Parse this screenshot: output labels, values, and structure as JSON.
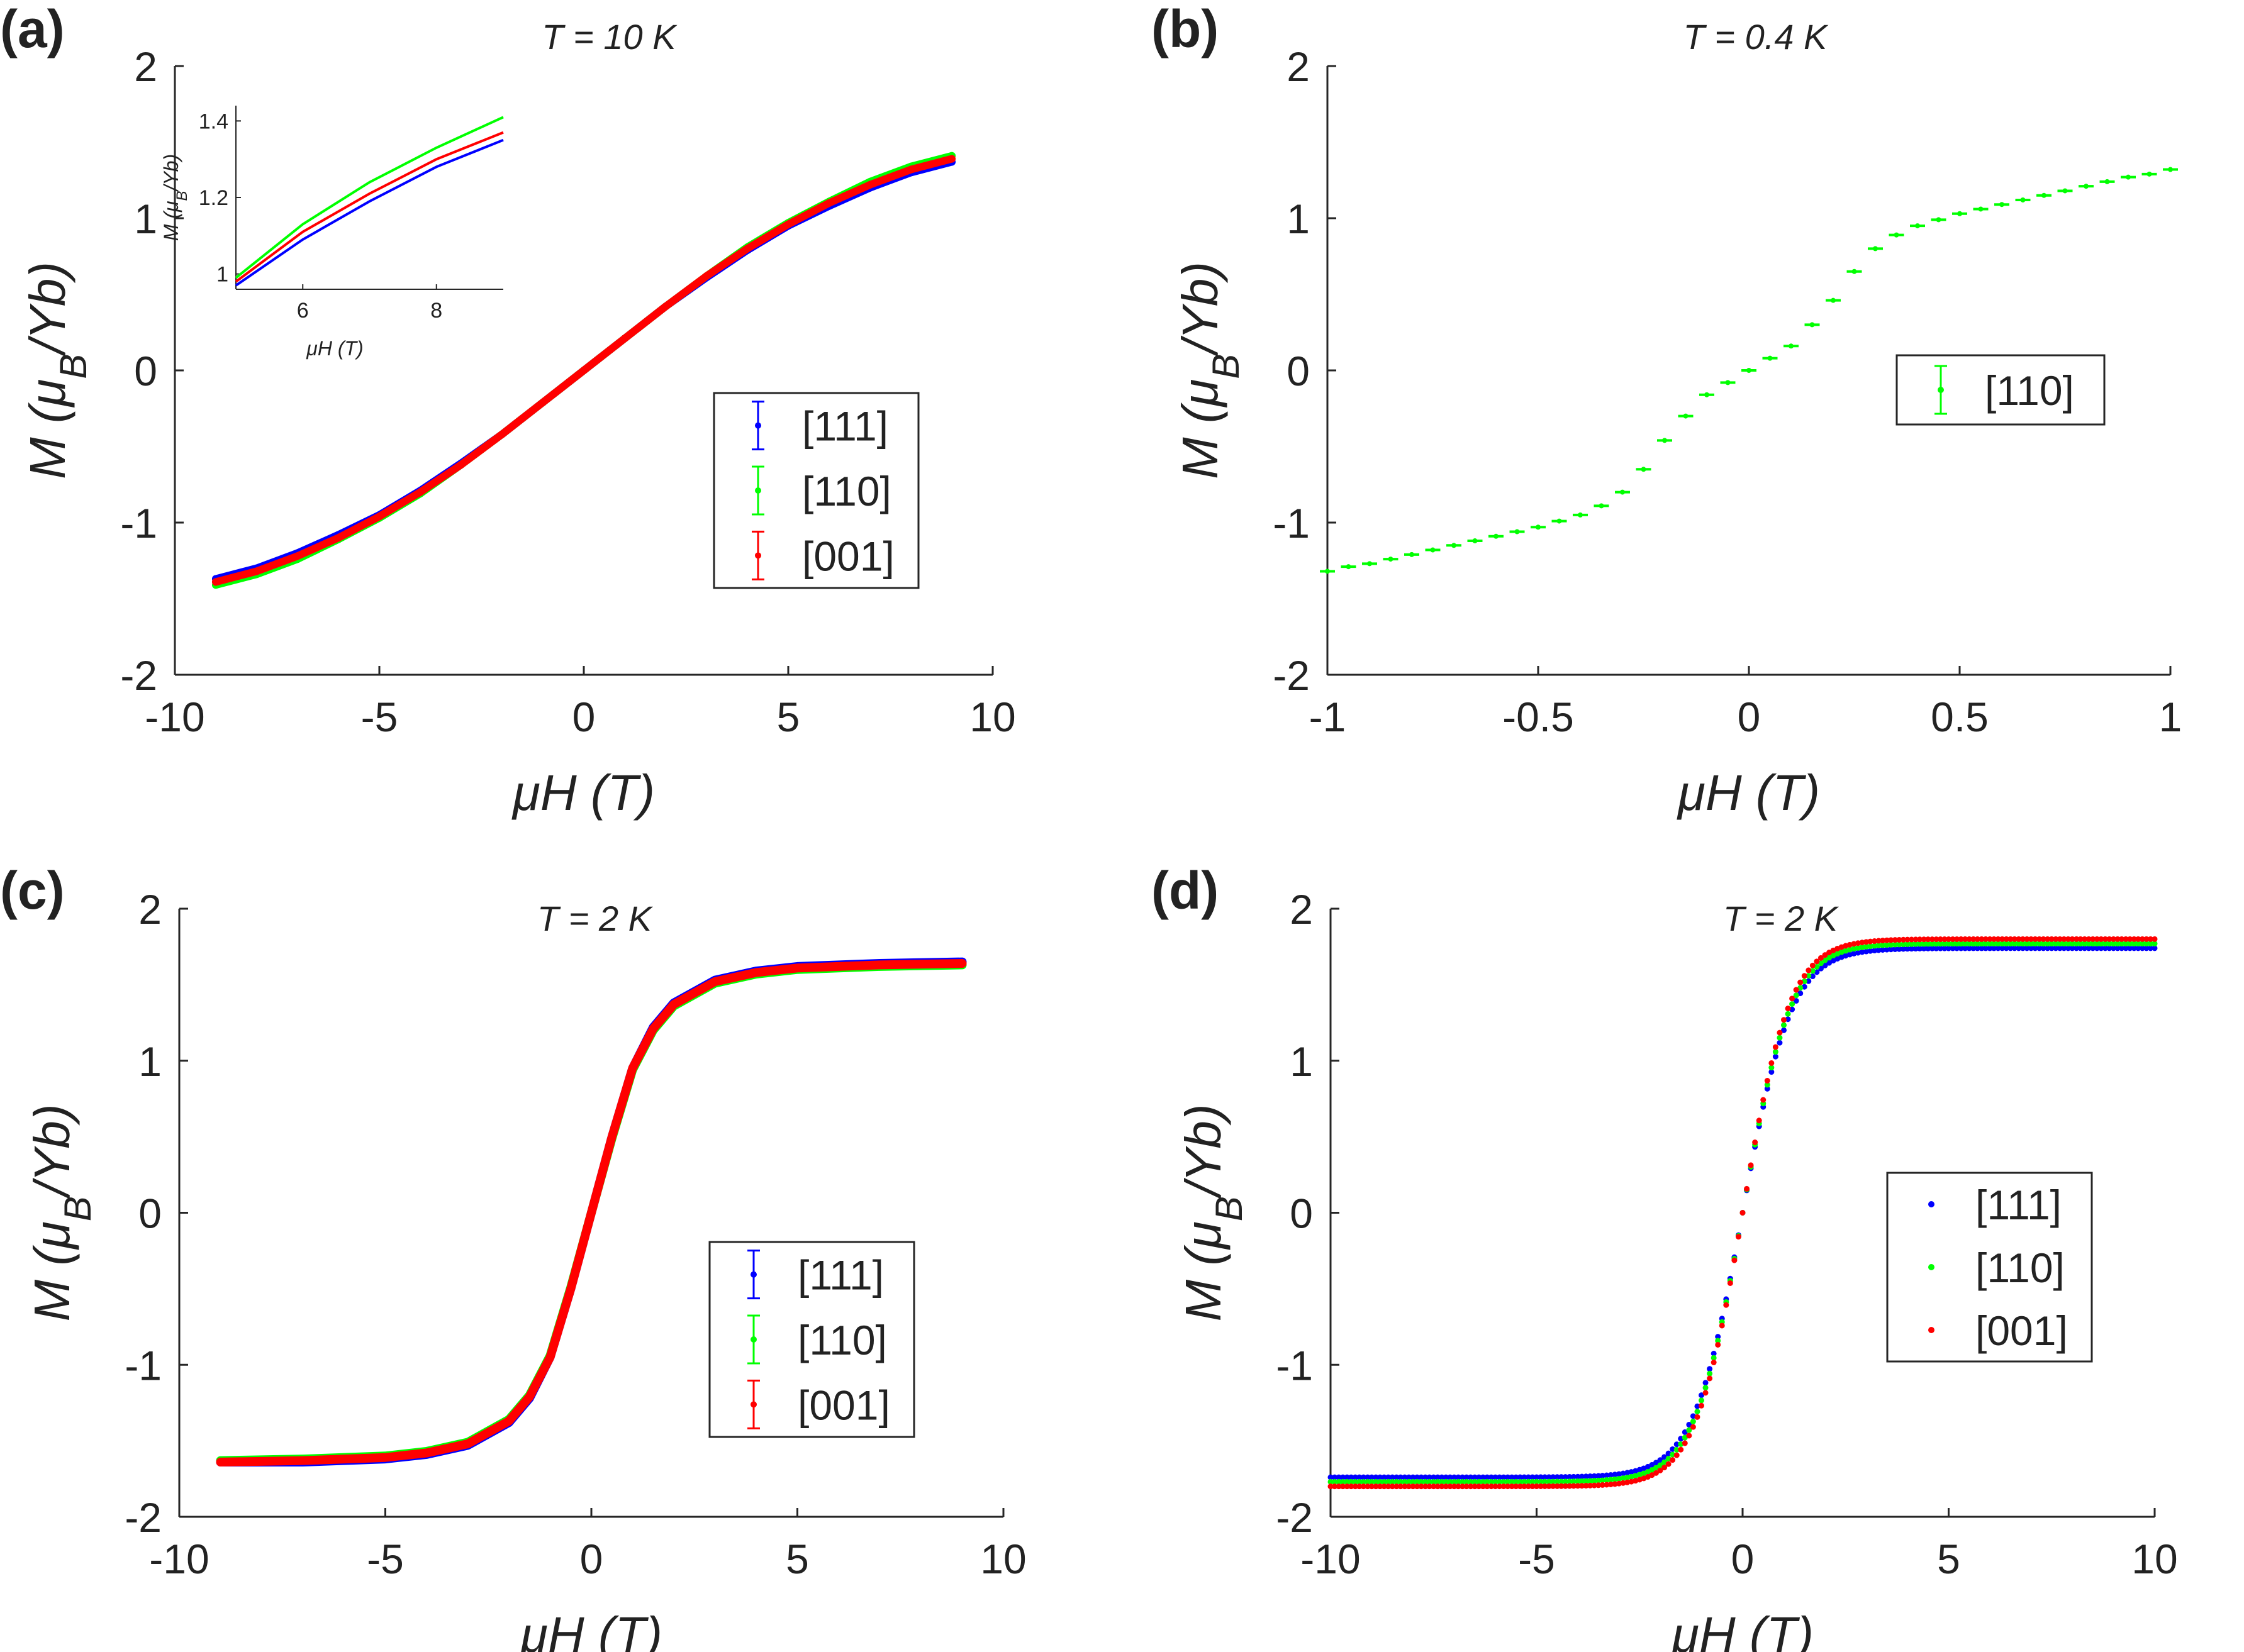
{
  "figure": {
    "ylabel": "M (μB/Yb)",
    "xlabel": "μH (T)"
  },
  "colors": {
    "[111]": "#0000ff",
    "[110]": "#00ff00",
    "[001]": "#ff0000"
  },
  "chart_data": [
    {
      "id": "a",
      "panel_label": "(a)",
      "type": "scatter",
      "title": "T = 10 K",
      "xlabel": "μH (T)",
      "ylabel": "M (μB/Yb)",
      "xlim": [
        -10,
        10
      ],
      "ylim": [
        -2,
        2
      ],
      "xticks": [
        -10,
        -5,
        0,
        5,
        10
      ],
      "yticks": [
        -2,
        -1,
        0,
        1,
        2
      ],
      "xtick_labels": [
        "-10",
        "-5",
        "0",
        "5",
        "10"
      ],
      "ytick_labels": [
        "-2",
        "-1",
        "0",
        "1",
        "2"
      ],
      "legend_position": "center-right",
      "legend_style": "errorbar",
      "series": [
        {
          "name": "[111]",
          "x": [
            -9,
            -8,
            -7,
            -6,
            -5,
            -4,
            -3,
            -2,
            -1,
            0,
            1,
            2,
            3,
            4,
            5,
            6,
            7,
            8,
            9
          ],
          "y": [
            -1.37,
            -1.3,
            -1.2,
            -1.08,
            -0.95,
            -0.79,
            -0.61,
            -0.42,
            -0.21,
            0,
            0.21,
            0.42,
            0.61,
            0.79,
            0.95,
            1.08,
            1.2,
            1.3,
            1.37
          ]
        },
        {
          "name": "[110]",
          "x": [
            -9,
            -8,
            -7,
            -6,
            -5,
            -4,
            -3,
            -2,
            -1,
            0,
            1,
            2,
            3,
            4,
            5,
            6,
            7,
            8,
            9
          ],
          "y": [
            -1.41,
            -1.34,
            -1.24,
            -1.11,
            -0.97,
            -0.81,
            -0.62,
            -0.42,
            -0.21,
            0,
            0.21,
            0.42,
            0.62,
            0.81,
            0.97,
            1.11,
            1.24,
            1.34,
            1.41
          ]
        },
        {
          "name": "[001]",
          "x": [
            -9,
            -8,
            -7,
            -6,
            -5,
            -4,
            -3,
            -2,
            -1,
            0,
            1,
            2,
            3,
            4,
            5,
            6,
            7,
            8,
            9
          ],
          "y": [
            -1.39,
            -1.32,
            -1.22,
            -1.1,
            -0.96,
            -0.8,
            -0.62,
            -0.42,
            -0.21,
            0,
            0.21,
            0.42,
            0.62,
            0.8,
            0.96,
            1.1,
            1.22,
            1.32,
            1.39
          ]
        }
      ],
      "inset": {
        "type": "line",
        "xlabel": "μH (T)",
        "ylabel": "M (μB/Yb)",
        "xlim": [
          5,
          9
        ],
        "ylim": [
          0.96,
          1.44
        ],
        "xticks": [
          6,
          8
        ],
        "yticks": [
          1,
          1.2,
          1.4
        ],
        "xtick_labels": [
          "6",
          "8"
        ],
        "ytick_labels": [
          "1",
          "1.2",
          "1.4"
        ],
        "series": [
          {
            "name": "[111]",
            "x": [
              5,
              6,
              7,
              8,
              9
            ],
            "y": [
              0.97,
              1.09,
              1.19,
              1.28,
              1.35
            ]
          },
          {
            "name": "[001]",
            "x": [
              5,
              6,
              7,
              8,
              9
            ],
            "y": [
              0.98,
              1.11,
              1.21,
              1.3,
              1.37
            ]
          },
          {
            "name": "[110]",
            "x": [
              5,
              6,
              7,
              8,
              9
            ],
            "y": [
              0.99,
              1.13,
              1.24,
              1.33,
              1.41
            ]
          }
        ]
      }
    },
    {
      "id": "b",
      "panel_label": "(b)",
      "type": "scatter",
      "title": "T = 0.4 K",
      "xlabel": "μH (T)",
      "ylabel": "M (μB/Yb)",
      "xlim": [
        -1,
        1
      ],
      "ylim": [
        -2,
        2
      ],
      "xticks": [
        -1,
        -0.5,
        0,
        0.5,
        1
      ],
      "yticks": [
        -2,
        -1,
        0,
        1,
        2
      ],
      "xtick_labels": [
        "-1",
        "-0.5",
        "0",
        "0.5",
        "1"
      ],
      "ytick_labels": [
        "-2",
        "-1",
        "0",
        "1",
        "2"
      ],
      "legend_position": "center-right",
      "legend_style": "errorbar",
      "series": [
        {
          "name": "[110]",
          "x": [
            -1.0,
            -0.95,
            -0.9,
            -0.85,
            -0.8,
            -0.75,
            -0.7,
            -0.65,
            -0.6,
            -0.55,
            -0.5,
            -0.45,
            -0.4,
            -0.35,
            -0.3,
            -0.25,
            -0.2,
            -0.15,
            -0.1,
            -0.05,
            0,
            0.05,
            0.1,
            0.15,
            0.2,
            0.25,
            0.3,
            0.35,
            0.4,
            0.45,
            0.5,
            0.55,
            0.6,
            0.65,
            0.7,
            0.75,
            0.8,
            0.85,
            0.9,
            0.95,
            1.0
          ],
          "y": [
            -1.32,
            -1.29,
            -1.27,
            -1.24,
            -1.21,
            -1.18,
            -1.15,
            -1.12,
            -1.09,
            -1.06,
            -1.03,
            -0.99,
            -0.95,
            -0.89,
            -0.8,
            -0.65,
            -0.46,
            -0.3,
            -0.16,
            -0.08,
            0,
            0.08,
            0.16,
            0.3,
            0.46,
            0.65,
            0.8,
            0.89,
            0.95,
            0.99,
            1.03,
            1.06,
            1.09,
            1.12,
            1.15,
            1.18,
            1.21,
            1.24,
            1.27,
            1.29,
            1.32
          ]
        }
      ]
    },
    {
      "id": "c",
      "panel_label": "(c)",
      "type": "scatter",
      "title": "T = 2 K",
      "xlabel": "μH (T)",
      "ylabel": "M (μB/Yb)",
      "xlim": [
        -10,
        10
      ],
      "ylim": [
        -2,
        2
      ],
      "xticks": [
        -10,
        -5,
        0,
        5,
        10
      ],
      "yticks": [
        -2,
        -1,
        0,
        1,
        2
      ],
      "xtick_labels": [
        "-10",
        "-5",
        "0",
        "5",
        "10"
      ],
      "ytick_labels": [
        "-2",
        "-1",
        "0",
        "1",
        "2"
      ],
      "legend_position": "center-right",
      "legend_style": "errorbar",
      "series": [
        {
          "name": "[111]",
          "x": [
            -9,
            -7,
            -5,
            -4,
            -3,
            -2,
            -1.5,
            -1,
            -0.5,
            0,
            0.5,
            1,
            1.5,
            2,
            3,
            4,
            5,
            7,
            9
          ],
          "y": [
            -1.64,
            -1.64,
            -1.62,
            -1.59,
            -1.53,
            -1.38,
            -1.22,
            -0.95,
            -0.5,
            0,
            0.5,
            0.95,
            1.22,
            1.38,
            1.53,
            1.59,
            1.62,
            1.64,
            1.65
          ]
        },
        {
          "name": "[110]",
          "x": [
            -9,
            -7,
            -5,
            -4,
            -3,
            -2,
            -1.5,
            -1,
            -0.5,
            0,
            0.5,
            1,
            1.5,
            2,
            3,
            4,
            5,
            7,
            9
          ],
          "y": [
            -1.63,
            -1.62,
            -1.6,
            -1.57,
            -1.51,
            -1.36,
            -1.2,
            -0.94,
            -0.49,
            0,
            0.49,
            0.94,
            1.2,
            1.36,
            1.51,
            1.57,
            1.6,
            1.62,
            1.63
          ]
        },
        {
          "name": "[001]",
          "x": [
            -9,
            -7,
            -5,
            -4,
            -3,
            -2,
            -1.5,
            -1,
            -0.5,
            0,
            0.5,
            1,
            1.5,
            2,
            3,
            4,
            5,
            7,
            9
          ],
          "y": [
            -1.64,
            -1.63,
            -1.61,
            -1.58,
            -1.52,
            -1.37,
            -1.21,
            -0.95,
            -0.5,
            0,
            0.5,
            0.95,
            1.21,
            1.37,
            1.52,
            1.58,
            1.61,
            1.63,
            1.64
          ]
        }
      ]
    },
    {
      "id": "d",
      "panel_label": "(d)",
      "type": "scatter",
      "title": "T = 2 K",
      "xlabel": "μH (T)",
      "ylabel": "M (μB/Yb)",
      "xlim": [
        -10,
        10
      ],
      "ylim": [
        -2,
        2
      ],
      "xticks": [
        -10,
        -5,
        0,
        5,
        10
      ],
      "yticks": [
        -2,
        -1,
        0,
        1,
        2
      ],
      "xtick_labels": [
        "-10",
        "-5",
        "0",
        "5",
        "10"
      ],
      "ytick_labels": [
        "-2",
        "-1",
        "0",
        "1",
        "2"
      ],
      "legend_position": "center-right",
      "legend_style": "dot",
      "series": [
        {
          "name": "[111]",
          "saturation": 1.74,
          "scale": 1.18
        },
        {
          "name": "[110]",
          "saturation": 1.77,
          "scale": 1.16
        },
        {
          "name": "[001]",
          "saturation": 1.8,
          "scale": 1.14
        }
      ]
    }
  ]
}
